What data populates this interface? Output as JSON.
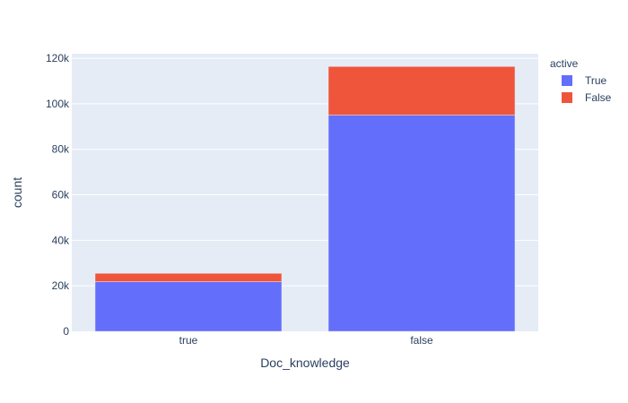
{
  "chart_data": {
    "type": "bar",
    "barmode": "stack",
    "categories": [
      "true",
      "false"
    ],
    "series": [
      {
        "name": "True",
        "values": [
          21800,
          95000
        ],
        "color": "#636efa"
      },
      {
        "name": "False",
        "values": [
          3700,
          21400
        ],
        "color": "#ef553b"
      }
    ],
    "title": "",
    "xlabel": "Doc_knowledge",
    "ylabel": "count",
    "ylim": [
      0,
      122000
    ],
    "yticks": [
      0,
      20000,
      40000,
      60000,
      80000,
      100000,
      120000
    ],
    "ytick_labels": [
      "0",
      "20k",
      "40k",
      "60k",
      "80k",
      "100k",
      "120k"
    ],
    "legend": {
      "title": "active",
      "position": "top-right"
    },
    "grid": true,
    "plot_bg": "#e5ecf6"
  }
}
